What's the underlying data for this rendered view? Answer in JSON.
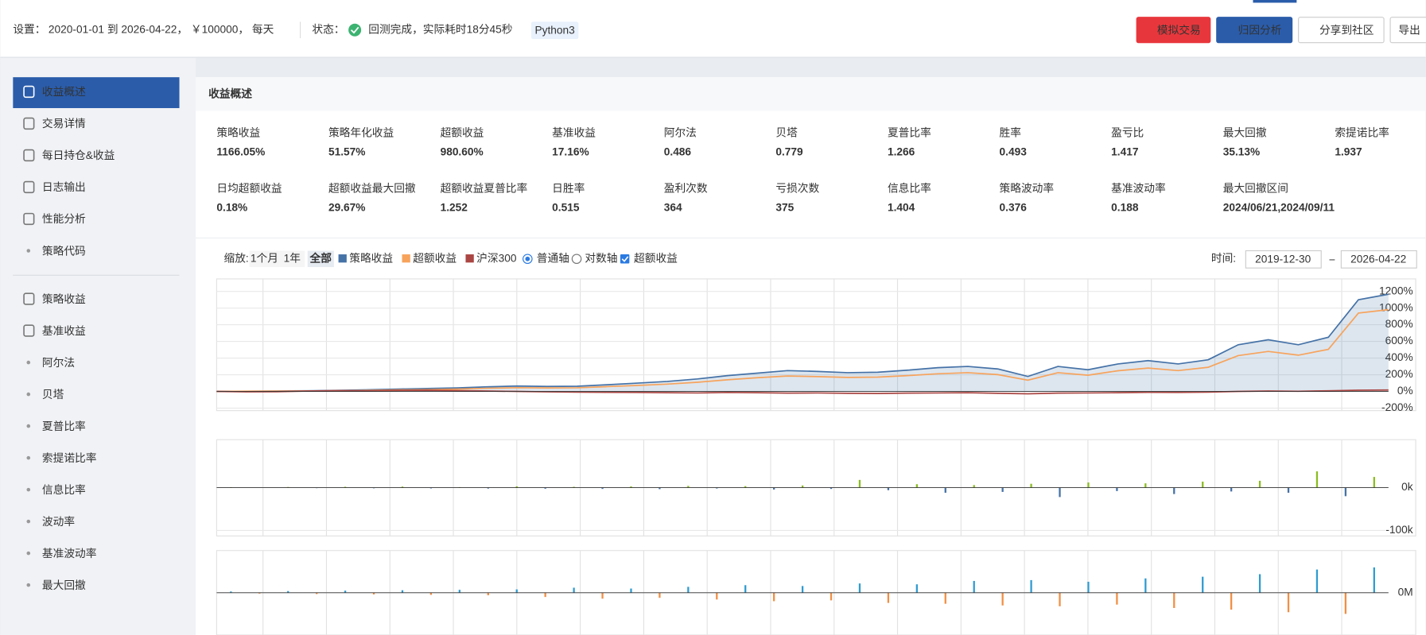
{
  "header": {
    "settings_label": "设置：",
    "settings": "2020-01-01 到 2026-04-22， ￥100000， 每天",
    "status_label": "状态：",
    "status": "回测完成，实际耗时18分45秒",
    "badge": "Python3",
    "buttons": [
      "模拟交易",
      "归因分析",
      "分享到社区",
      "导出"
    ]
  },
  "sidebar": {
    "group1": [
      "收益概述",
      "交易详情",
      "每日持仓&收益",
      "日志输出",
      "性能分析",
      "策略代码"
    ],
    "group2": [
      "策略收益",
      "基准收益",
      "阿尔法",
      "贝塔",
      "夏普比率",
      "索提诺比率",
      "信息比率",
      "波动率",
      "基准波动率",
      "最大回撤"
    ]
  },
  "panel": {
    "title": "收益概述",
    "metrics": [
      {
        "label": "策略收益",
        "value": "1166.05%",
        "color": "#e8373c"
      },
      {
        "label": "策略年化收益",
        "value": "51.57%",
        "color": "#e8373c"
      },
      {
        "label": "超额收益",
        "value": "980.60%",
        "color": "#e8373c"
      },
      {
        "label": "基准收益",
        "value": "17.16%",
        "color": "#e8373c"
      },
      {
        "label": "阿尔法",
        "value": "0.486"
      },
      {
        "label": "贝塔",
        "value": "0.779"
      },
      {
        "label": "夏普比率",
        "value": "1.266"
      },
      {
        "label": "胜率",
        "value": "0.493"
      },
      {
        "label": "盈亏比",
        "value": "1.417"
      },
      {
        "label": "最大回撤",
        "value": "35.13%"
      },
      {
        "label": "索提诺比率",
        "value": "1.937"
      },
      {
        "label": "日均超额收益",
        "value": "0.18%"
      },
      {
        "label": "超额收益最大回撤",
        "value": "29.67%"
      },
      {
        "label": "超额收益夏普比率",
        "value": "1.252"
      },
      {
        "label": "日胜率",
        "value": "0.515"
      },
      {
        "label": "盈利次数",
        "value": "364"
      },
      {
        "label": "亏损次数",
        "value": "375"
      },
      {
        "label": "信息比率",
        "value": "1.404"
      },
      {
        "label": "策略波动率",
        "value": "0.376"
      },
      {
        "label": "基准波动率",
        "value": "0.188"
      },
      {
        "label": "最大回撤区间",
        "value": "2024/06/21,2024/09/11"
      }
    ]
  },
  "controls": {
    "zoom_label": "缩放:",
    "zoom": [
      "1个月",
      "1年",
      "全部"
    ],
    "axis_options": [
      "普通轴",
      "对数轴"
    ],
    "excess_toggle": "超额收益",
    "time_label": "时间:",
    "start": "2019-12-30",
    "end": "2026-04-22"
  },
  "chart_data": [
    {
      "type": "line",
      "series": [
        {
          "name": "策略收益",
          "color": "#4572a7",
          "values": [
            0,
            2,
            5,
            8,
            12,
            20,
            28,
            35,
            42,
            55,
            65,
            60,
            62,
            80,
            100,
            120,
            150,
            190,
            220,
            250,
            240,
            225,
            230,
            255,
            285,
            300,
            270,
            180,
            300,
            260,
            330,
            370,
            330,
            380,
            560,
            620,
            560,
            650,
            1100,
            1166
          ]
        },
        {
          "name": "超额收益",
          "color": "#f7a35c",
          "values": [
            0,
            3,
            4,
            5,
            8,
            12,
            18,
            22,
            28,
            38,
            45,
            42,
            44,
            58,
            72,
            88,
            110,
            140,
            165,
            185,
            178,
            168,
            172,
            190,
            212,
            225,
            202,
            135,
            225,
            195,
            248,
            280,
            250,
            290,
            430,
            480,
            435,
            505,
            940,
            981
          ]
        },
        {
          "name": "沪深300",
          "color": "#aa4643",
          "values": [
            0,
            -5,
            -3,
            5,
            10,
            8,
            12,
            15,
            10,
            5,
            0,
            -5,
            -8,
            -10,
            -12,
            -15,
            -18,
            -12,
            -15,
            -20,
            -18,
            -22,
            -25,
            -20,
            -18,
            -15,
            -22,
            -28,
            -20,
            -18,
            -15,
            -10,
            -12,
            -8,
            0,
            5,
            2,
            8,
            15,
            17
          ]
        }
      ],
      "ylim": [
        -230,
        1350
      ],
      "yticks": [
        {
          "value": -200,
          "label": "-200%"
        },
        {
          "value": 0,
          "label": "0%"
        },
        {
          "value": 200,
          "label": "200%"
        },
        {
          "value": 400,
          "label": "400%"
        },
        {
          "value": 600,
          "label": "600%"
        },
        {
          "value": 800,
          "label": "800%"
        },
        {
          "value": 1000,
          "label": "1000%"
        },
        {
          "value": 1200,
          "label": "1200%"
        }
      ]
    },
    {
      "type": "bar",
      "up_color": "#8bbc21",
      "down_color": "#4572a7",
      "values": [
        1000,
        -800,
        1500,
        -1200,
        2000,
        -1500,
        2500,
        -1800,
        1200,
        -2200,
        3000,
        -2500,
        2000,
        -3000,
        2800,
        -3500,
        4000,
        -2000,
        3500,
        -4500,
        5000,
        -3000,
        18000,
        -6000,
        8000,
        -12000,
        6000,
        -10000,
        9000,
        -22000,
        12000,
        -8000,
        10000,
        -15000,
        14000,
        -9000,
        16000,
        -12000,
        38000,
        -20000,
        25000
      ],
      "ylim": [
        -113000,
        112000
      ],
      "yticks": [
        {
          "value": -100000,
          "label": "-100k"
        },
        {
          "value": 0,
          "label": "0k"
        }
      ]
    },
    {
      "type": "bar",
      "up_color": "#2f9bd0",
      "down_color": "#f28f43",
      "values": [
        0.03,
        -0.02,
        0.04,
        -0.03,
        0.05,
        -0.04,
        0.06,
        -0.05,
        0.07,
        -0.06,
        0.08,
        -0.1,
        0.12,
        -0.14,
        0.1,
        -0.12,
        0.14,
        -0.16,
        0.18,
        -0.2,
        0.16,
        -0.18,
        0.22,
        -0.24,
        0.2,
        -0.26,
        0.28,
        -0.3,
        0.3,
        -0.32,
        0.26,
        -0.28,
        0.34,
        -0.36,
        0.38,
        -0.4,
        0.44,
        -0.46,
        0.55,
        -0.5,
        0.6
      ],
      "ylim": [
        -1,
        1
      ],
      "yticks": [
        {
          "value": 0,
          "label": "0M"
        }
      ]
    }
  ]
}
